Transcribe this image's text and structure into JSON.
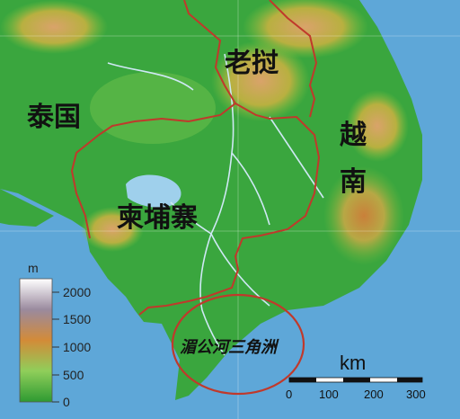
{
  "map": {
    "labels": {
      "thailand": "泰国",
      "laos": "老挝",
      "vietnam_top": "越",
      "vietnam_bottom": "南",
      "cambodia": "柬埔寨",
      "mekong_delta": "湄公河三角洲"
    },
    "elevation_legend": {
      "unit": "m",
      "ticks": [
        "2000",
        "1500",
        "1000",
        "500",
        "0"
      ],
      "colors": [
        "#ffffff",
        "#9a8a9e",
        "#d38b38",
        "#8fce5a",
        "#2e9a32"
      ]
    },
    "scale_bar": {
      "unit": "km",
      "ticks": [
        "0",
        "100",
        "200",
        "300"
      ]
    },
    "colors": {
      "sea": "#5ea7d8",
      "lowland": "#2f9e38",
      "highland": "#c68a3c",
      "border": "#c0392b",
      "river": "#cfe8f5",
      "delta_circle": "#c0392b"
    }
  }
}
